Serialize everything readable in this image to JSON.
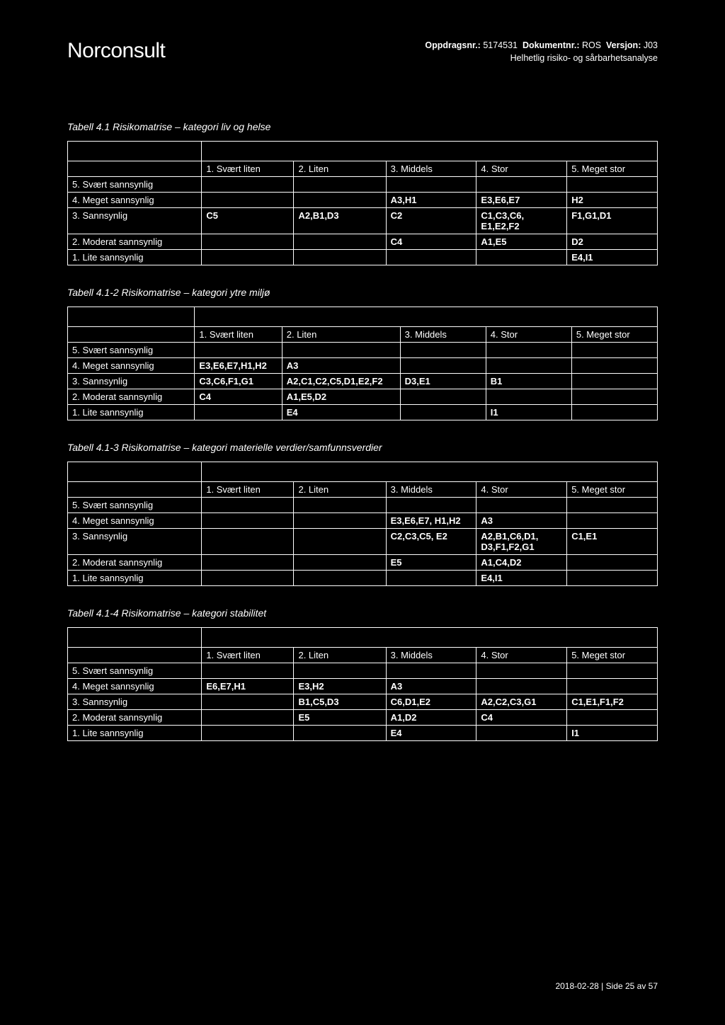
{
  "header": {
    "logo": "Norconsult",
    "meta_line1_label1": "Oppdragsnr.:",
    "meta_line1_val1": "5174531",
    "meta_line1_label2": "Dokumentnr.:",
    "meta_line1_val2": "ROS",
    "meta_line1_label3": "Versjon:",
    "meta_line1_val3": "J03",
    "meta_line2": "Helhetlig risiko- og sårbarhetsanalyse"
  },
  "columns": {
    "c1": "1. Svært liten",
    "c2": "2. Liten",
    "c3": "3. Middels",
    "c4": "4. Stor",
    "c5": "5. Meget stor"
  },
  "row_labels": {
    "r5": "5. Svært sannsynlig",
    "r4": "4. Meget sannsynlig",
    "r3": "3. Sannsynlig",
    "r2": "2. Moderat sannsynlig",
    "r1": "1. Lite sannsynlig"
  },
  "tables": {
    "t1": {
      "caption": "Tabell 4.1 Risikomatrise – kategori liv og helse",
      "r4": {
        "c3": "A3,H1",
        "c4": "E3,E6,E7",
        "c5": "H2"
      },
      "r3": {
        "c1": "C5",
        "c2": "A2,B1,D3",
        "c3": "C2",
        "c4": "C1,C3,C6, E1,E2,F2",
        "c5": "F1,G1,D1"
      },
      "r2": {
        "c3": "C4",
        "c4": "A1,E5",
        "c5": "D2"
      },
      "r1": {
        "c5": "E4,I1"
      }
    },
    "t2": {
      "caption": "Tabell 4.1-2 Risikomatrise – kategori ytre miljø",
      "r4": {
        "c1": "E3,E6,E7,H1,H2",
        "c2": "A3"
      },
      "r3": {
        "c1": "C3,C6,F1,G1",
        "c2": "A2,C1,C2,C5,D1,E2,F2",
        "c3": "D3,E1",
        "c4": "B1"
      },
      "r2": {
        "c1": "C4",
        "c2": "A1,E5,D2"
      },
      "r1": {
        "c2": "E4",
        "c4": "I1"
      }
    },
    "t3": {
      "caption": "Tabell 4.1-3 Risikomatrise – kategori materielle verdier/samfunnsverdier",
      "r4": {
        "c3": "E3,E6,E7, H1,H2",
        "c4": "A3"
      },
      "r3": {
        "c3": "C2,C3,C5, E2",
        "c4": "A2,B1,C6,D1, D3,F1,F2,G1",
        "c5": "C1,E1"
      },
      "r2": {
        "c3": "E5",
        "c4": "A1,C4,D2"
      },
      "r1": {
        "c4": "E4,I1"
      }
    },
    "t4": {
      "caption": "Tabell 4.1-4 Risikomatrise – kategori stabilitet",
      "r4": {
        "c1": "E6,E7,H1",
        "c2": "E3,H2",
        "c3": "A3"
      },
      "r3": {
        "c2": "B1,C5,D3",
        "c3": "C6,D1,E2",
        "c4": "A2,C2,C3,G1",
        "c5": "C1,E1,F1,F2"
      },
      "r2": {
        "c2": "E5",
        "c3": "A1,D2",
        "c4": "C4"
      },
      "r1": {
        "c3": "E4",
        "c5": "I1"
      }
    }
  },
  "footer": "2018-02-28  |  Side 25 av 57"
}
